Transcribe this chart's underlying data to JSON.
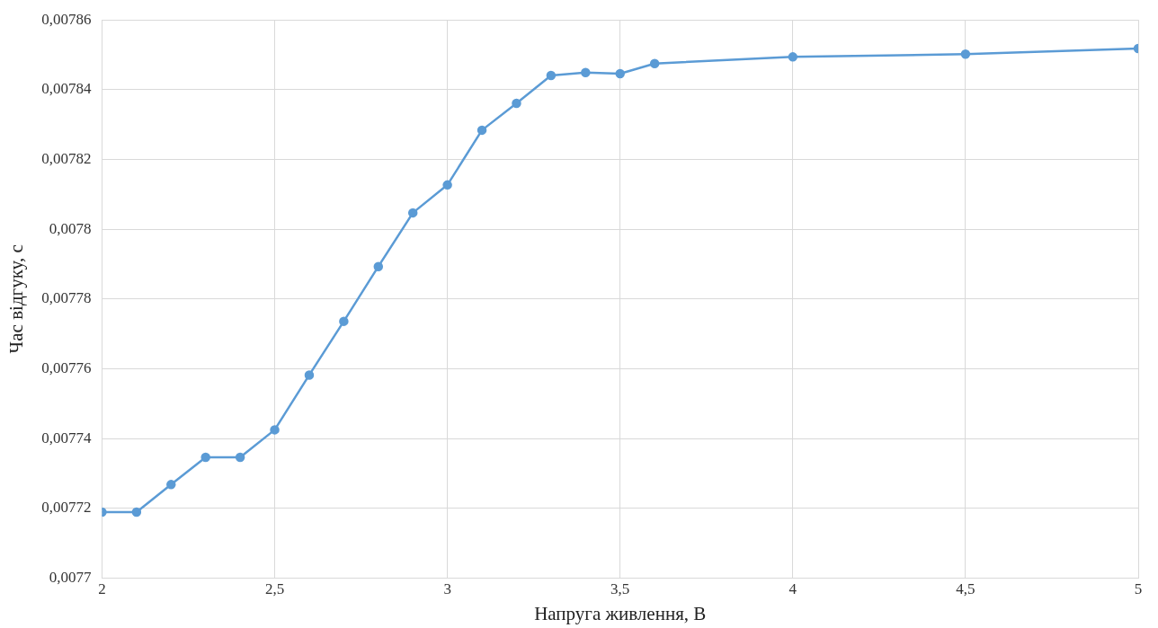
{
  "chart_data": {
    "type": "line",
    "xlabel": "Напруга живлення, В",
    "ylabel": "Час відгуку, с",
    "x": [
      2,
      2.1,
      2.2,
      2.3,
      2.4,
      2.5,
      2.6,
      2.7,
      2.8,
      2.9,
      3,
      3.1,
      3.2,
      3.3,
      3.4,
      3.5,
      3.6,
      4,
      4.5,
      5
    ],
    "series": [
      {
        "color": "#5b9bd5",
        "values": [
          0.0077189,
          0.0077189,
          0.0077268,
          0.0077346,
          0.0077346,
          0.0077425,
          0.0077582,
          0.0077736,
          0.0077893,
          0.0078047,
          0.0078127,
          0.0078284,
          0.0078361,
          0.0078441,
          0.0078449,
          0.0078446,
          0.0078475,
          0.0078494,
          0.0078502,
          0.0078518
        ]
      }
    ],
    "xlim": [
      2,
      5
    ],
    "xticks": [
      2,
      {
        "value": 2.5,
        "label": "2,5"
      },
      3,
      {
        "value": 3.5,
        "label": "3,5"
      },
      4,
      {
        "value": 4.5,
        "label": "4,5"
      },
      5
    ],
    "ylim": [
      0.0077,
      0.00786
    ],
    "yticks": [
      {
        "value": 0.0077,
        "label": "0,0077"
      },
      {
        "value": 0.00772,
        "label": "0,00772"
      },
      {
        "value": 0.00774,
        "label": "0,00774"
      },
      {
        "value": 0.00776,
        "label": "0,00776"
      },
      {
        "value": 0.00778,
        "label": "0,00778"
      },
      {
        "value": 0.0078,
        "label": "0,0078"
      },
      {
        "value": 0.00782,
        "label": "0,00782"
      },
      {
        "value": 0.00784,
        "label": "0,00784"
      },
      {
        "value": 0.00786,
        "label": "0,00786"
      }
    ],
    "grid": true,
    "legend": false,
    "marker": "circle",
    "line_style": "solid"
  }
}
